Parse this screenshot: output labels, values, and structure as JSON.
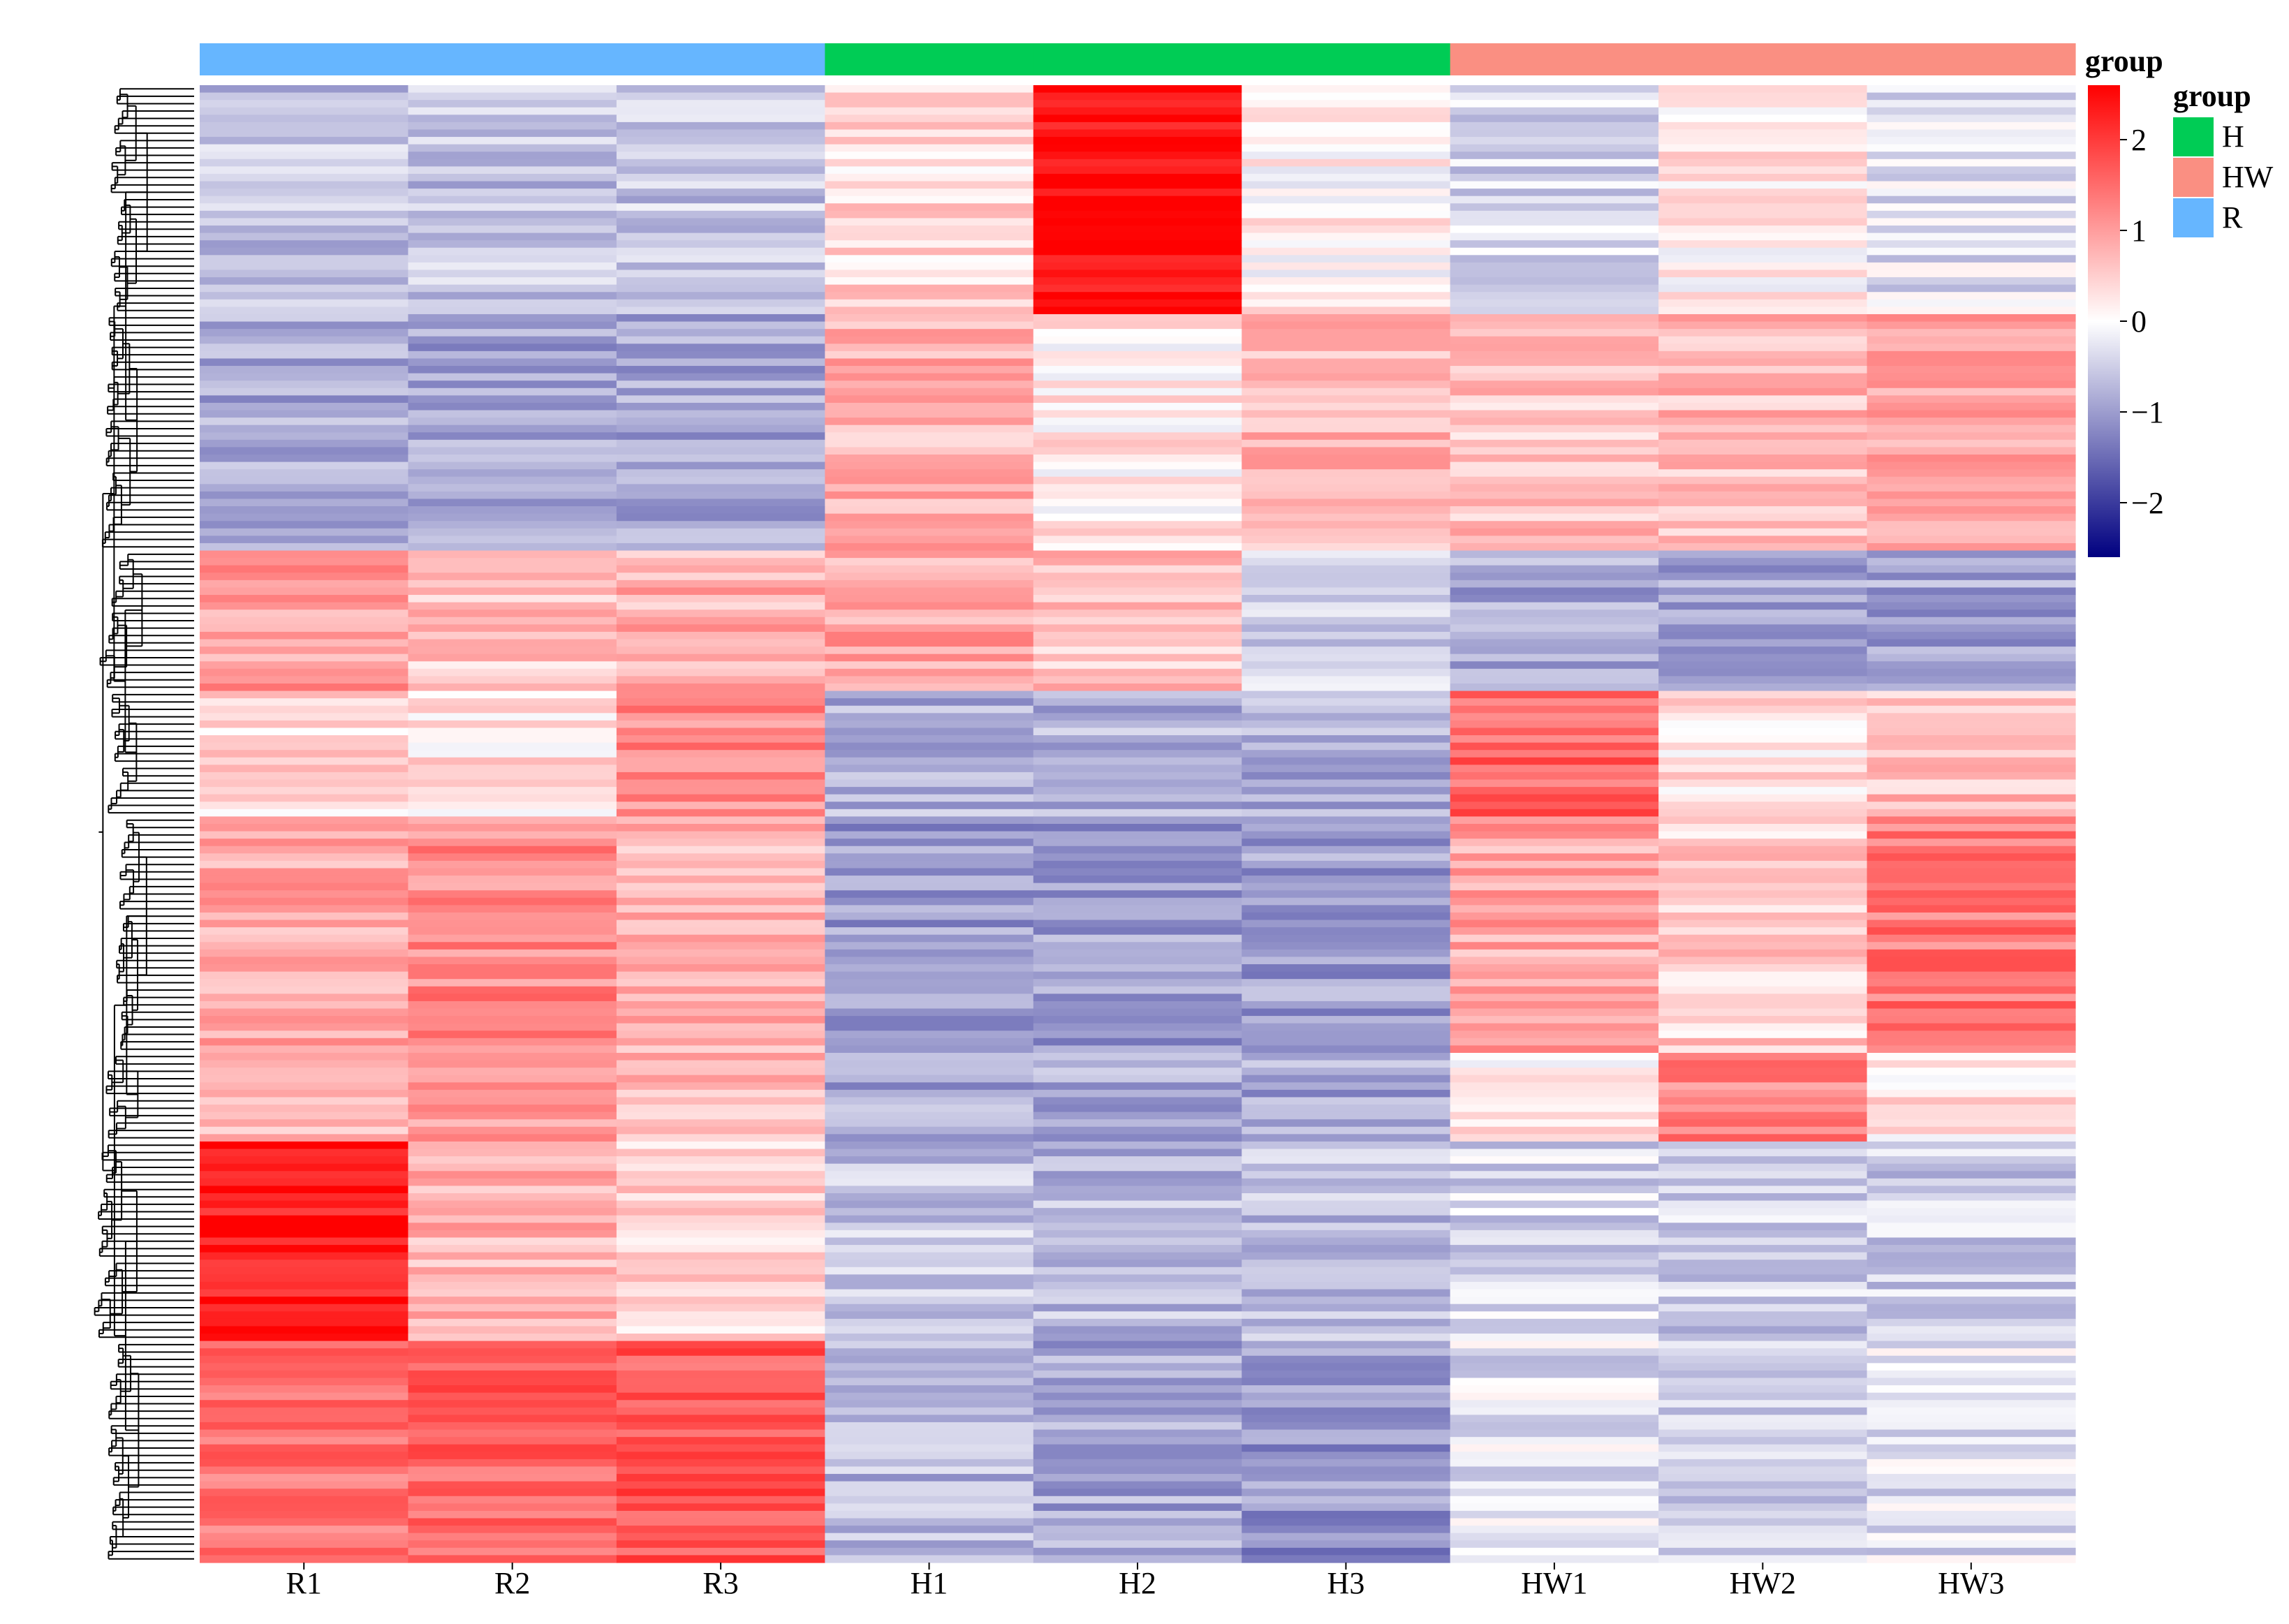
{
  "chart_data": {
    "type": "heatmap",
    "title": "",
    "columns": [
      "R1",
      "R2",
      "R3",
      "H1",
      "H2",
      "H3",
      "HW1",
      "HW2",
      "HW3"
    ],
    "column_groups": [
      "R",
      "R",
      "R",
      "H",
      "H",
      "H",
      "HW",
      "HW",
      "HW"
    ],
    "row_count": 200,
    "color_scale": {
      "min": -2.6,
      "max": 2.6,
      "ticks": [
        2,
        1,
        0,
        -1,
        -2
      ],
      "low": "#000080",
      "mid": "#ffffff",
      "high": "#ff0000"
    },
    "group_legend": {
      "title": "group",
      "items": [
        {
          "label": "H",
          "color": "#00cc55"
        },
        {
          "label": "HW",
          "color": "#fa8f82"
        },
        {
          "label": "R",
          "color": "#66b6ff"
        }
      ]
    },
    "annotation_label": "group",
    "row_clusters": [
      {
        "rows": 31,
        "values": [
          -0.6,
          -0.6,
          -0.6,
          0.4,
          2.5,
          0.1,
          -0.4,
          0.2,
          -0.3
        ]
      },
      {
        "rows": 32,
        "values": [
          -0.9,
          -0.9,
          -0.9,
          0.8,
          0.2,
          0.8,
          0.6,
          0.7,
          1.0
        ]
      },
      {
        "rows": 19,
        "values": [
          1.0,
          0.6,
          0.8,
          0.9,
          0.6,
          -0.5,
          -0.9,
          -0.9,
          -0.9
        ]
      },
      {
        "rows": 17,
        "values": [
          0.4,
          0.3,
          1.2,
          -0.8,
          -0.8,
          -0.8,
          1.6,
          0.3,
          0.7
        ]
      },
      {
        "rows": 32,
        "values": [
          0.9,
          1.2,
          0.8,
          -1.0,
          -1.0,
          -1.0,
          0.9,
          0.5,
          1.4
        ]
      },
      {
        "rows": 12,
        "values": [
          0.6,
          1.0,
          0.7,
          -0.9,
          -0.9,
          -0.9,
          0.2,
          1.3,
          0.3
        ]
      },
      {
        "rows": 27,
        "values": [
          2.3,
          0.8,
          0.5,
          -0.6,
          -0.7,
          -0.7,
          -0.4,
          -0.5,
          -0.5
        ]
      },
      {
        "rows": 30,
        "values": [
          1.4,
          1.6,
          1.7,
          -0.7,
          -0.9,
          -1.1,
          -0.3,
          -0.5,
          -0.3
        ]
      }
    ]
  }
}
